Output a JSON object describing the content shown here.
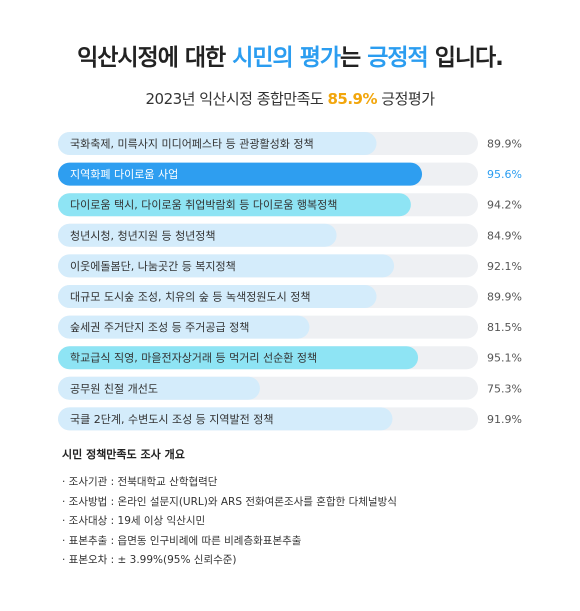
{
  "header": {
    "title_part1": "익산시정에 대한 ",
    "title_hl1": "시민의 평가",
    "title_part2": "는 ",
    "title_hl2": "긍정적",
    "title_part3": " 입니다.",
    "subtitle_part1": "2023년 익산시정 종합만족도 ",
    "subtitle_pct": "85.9%",
    "subtitle_part2": " 긍정평가"
  },
  "chart_data": {
    "type": "bar",
    "orientation": "horizontal",
    "categories": [
      "국화축제, 미륵사지 미디어페스타 등 관광활성화 정책",
      "지역화폐 다이로움 사업",
      "다이로움 택시, 다이로움 취업박람회 등 다이로움 행복정책",
      "청년시청, 청년지원 등 청년정책",
      "이웃에돌봄단, 나눔곳간 등 복지정책",
      "대규모 도시숲 조성, 치유의 숲 등 녹색정원도시 정책",
      "숲세권 주거단지 조성 등 주거공급 정책",
      "학교급식 직영, 마을전자상거래 등 먹거리 선순환 정책",
      "공무원 친절 개선도",
      "국클 2단계, 수변도시 조성 등 지역발전 정책"
    ],
    "values": [
      89.9,
      95.6,
      94.2,
      84.9,
      92.1,
      89.9,
      81.5,
      95.1,
      75.3,
      91.9
    ],
    "value_labels": [
      "89.9%",
      "95.6%",
      "94.2%",
      "84.9%",
      "92.1%",
      "89.9%",
      "81.5%",
      "95.1%",
      "75.3%",
      "91.9%"
    ],
    "highlight_index": 1,
    "xlim": [
      0,
      100
    ],
    "colors": {
      "track": "#eef0f3",
      "bar": "#d4ecfb",
      "bar_strong": "#8ee4f4",
      "bar_highlight": "#2e9ef0"
    },
    "strong_indices": [
      2,
      7
    ]
  },
  "overview": {
    "title": "시민 정책만족도 조사 개요",
    "rows": [
      "· 조사기관 : 전북대학교 산학협력단",
      "· 조사방법 : 온라인 설문지(URL)와 ARS 전화여론조사를 혼합한 다체널방식",
      "· 조사대상 : 19세 이상 익산시민",
      "· 표본추출 : 읍면동 인구비례에 따른 비례층화표본추출",
      "· 표본오차 : ± 3.99%(95% 신뢰수준)"
    ]
  }
}
